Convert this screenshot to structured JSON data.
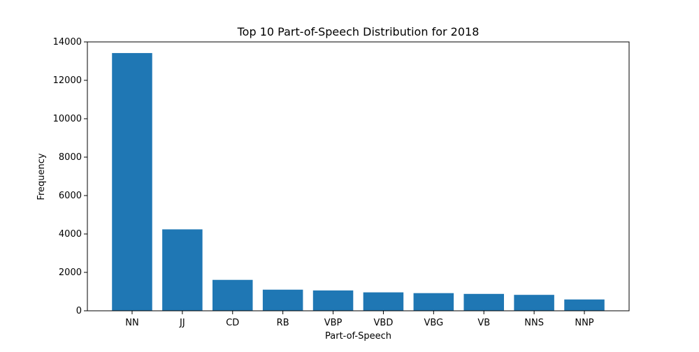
{
  "chart_data": {
    "type": "bar",
    "title": "Top 10 Part-of-Speech Distribution for 2018",
    "xlabel": "Part-of-Speech",
    "ylabel": "Frequency",
    "categories": [
      "NN",
      "JJ",
      "CD",
      "RB",
      "VBP",
      "VBD",
      "VBG",
      "VB",
      "NNS",
      "NNP"
    ],
    "values": [
      13420,
      4240,
      1610,
      1100,
      1060,
      960,
      920,
      880,
      830,
      590
    ],
    "ylim": [
      0,
      14000
    ],
    "yticks": [
      0,
      2000,
      4000,
      6000,
      8000,
      10000,
      12000,
      14000
    ],
    "bar_color": "#1f77b4",
    "grid": false,
    "legend": "none"
  }
}
